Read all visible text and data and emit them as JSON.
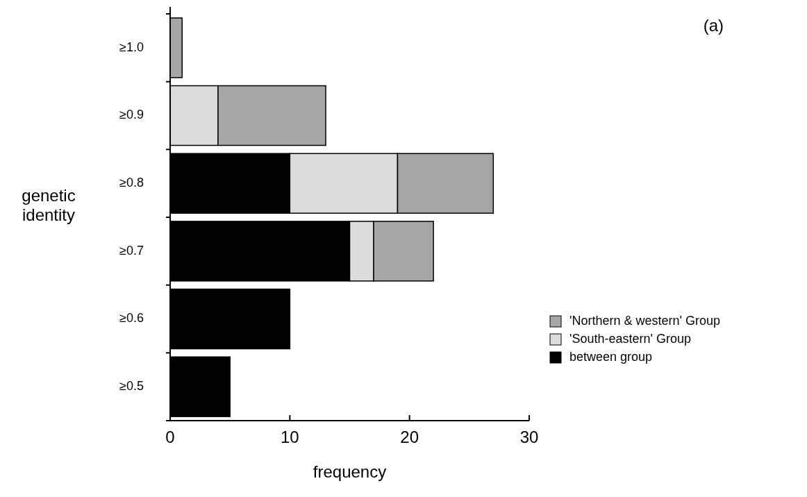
{
  "chart_data": {
    "type": "bar",
    "orientation": "horizontal",
    "stacked": true,
    "xlabel": "frequency",
    "ylabel": "genetic identity",
    "annotations": [
      "(a)"
    ],
    "categories": [
      "≥1.0",
      "≥0.9",
      "≥0.8",
      "≥0.7",
      "≥0.6",
      "≥0.5"
    ],
    "series": [
      {
        "name": "between group",
        "color": "#000000",
        "values": [
          0,
          0,
          10,
          15,
          10,
          5
        ]
      },
      {
        "name": "'South-eastern' Group",
        "color": "#dcdcdc",
        "values": [
          0,
          4,
          9,
          2,
          0,
          0
        ]
      },
      {
        "name": "'Northern & western' Group",
        "color": "#a6a6a6",
        "values": [
          1,
          9,
          8,
          5,
          0,
          0
        ]
      }
    ],
    "xlim": [
      0,
      30
    ],
    "xticks": [
      0,
      10,
      20,
      30
    ],
    "legend": "right"
  }
}
